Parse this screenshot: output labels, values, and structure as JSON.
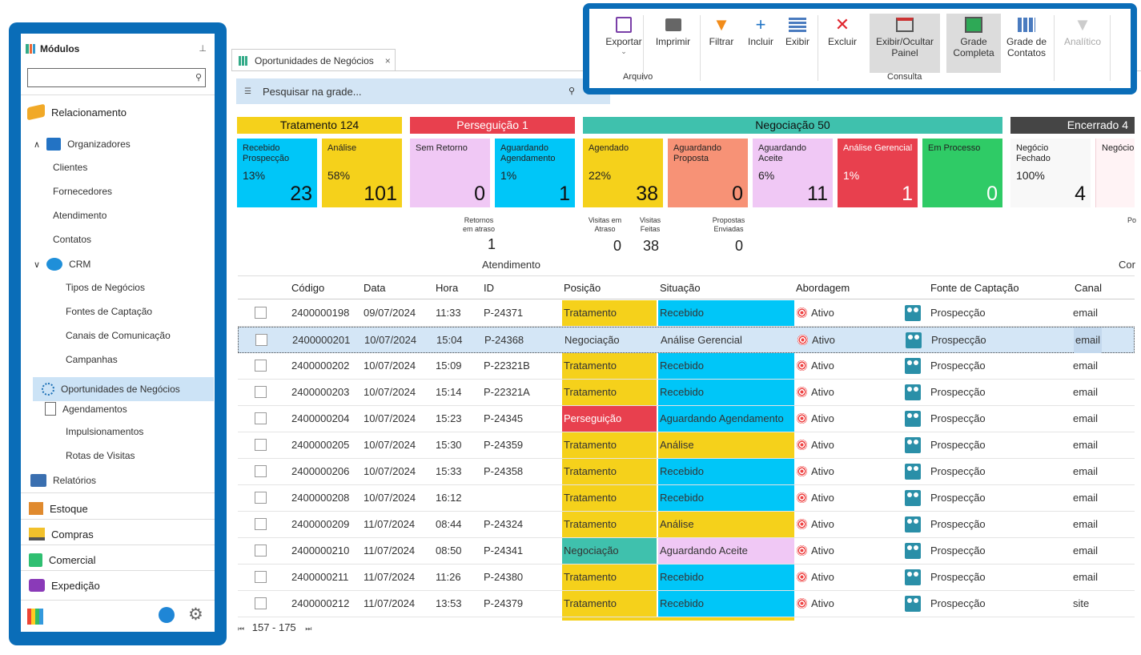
{
  "colors": {
    "accent": "#0a6db8",
    "tratamento": "#f5d11b",
    "perseguicao": "#e8404e",
    "negociacao": "#3fc1ad",
    "encerrado": "#454545",
    "cyan": "#00c6f8",
    "pink": "#f0c8f5",
    "salmon": "#f79276",
    "green": "#2fcb66"
  },
  "sidebar": {
    "title": "Módulos",
    "items": {
      "relacionamento": "Relacionamento",
      "organizadores": "Organizadores",
      "clientes": "Clientes",
      "fornecedores": "Fornecedores",
      "atendimento": "Atendimento",
      "contatos": "Contatos",
      "crm": "CRM",
      "tipos": "Tipos de Negócios",
      "fontes": "Fontes de Captação",
      "canais": "Canais de Comunicação",
      "campanhas": "Campanhas",
      "oportunidades": "Oportunidades de Negócios",
      "agendamentos": "Agendamentos",
      "impulsionamentos": "Impulsionamentos",
      "rotas": "Rotas de Visitas",
      "relatorios": "Relatórios",
      "estoque": "Estoque",
      "compras": "Compras",
      "comercial": "Comercial",
      "expedicao": "Expedição"
    }
  },
  "tab": {
    "label": "Oportunidades de Negócios",
    "close": "×"
  },
  "search": {
    "placeholder": "Pesquisar na grade..."
  },
  "ribbon": {
    "exportar": "Exportar",
    "imprimir": "Imprimir",
    "filtrar": "Filtrar",
    "incluir": "Incluir",
    "exibir": "Exibir",
    "excluir": "Excluir",
    "exibir_painel_1": "Exibir/Ocultar",
    "exibir_painel_2": "Painel",
    "grade_completa_1": "Grade",
    "grade_completa_2": "Completa",
    "grade_contatos_1": "Grade de",
    "grade_contatos_2": "Contatos",
    "analitico": "Analítico",
    "group_arquivo": "Arquivo",
    "group_consulta": "Consulta"
  },
  "kanban": {
    "headers": {
      "tratamento": "Tratamento 124",
      "perseguicao": "Perseguição 1",
      "negociacao": "Negociação 50",
      "encerrado": "Encerrado 4"
    },
    "cards": {
      "c1": {
        "l1": "Recebido",
        "l2": "Prospecção",
        "pct": "13%",
        "num": "23"
      },
      "c2": {
        "l1": "Análise",
        "l2": "",
        "pct": "58%",
        "num": "101"
      },
      "c3": {
        "l1": "Sem Retorno",
        "l2": "",
        "pct": "",
        "num": "0"
      },
      "c4": {
        "l1": "Aguardando",
        "l2": "Agendamento",
        "pct": "1%",
        "num": "1"
      },
      "c5": {
        "l1": "Agendado",
        "l2": "",
        "pct": "22%",
        "num": "38"
      },
      "c6": {
        "l1": "Aguardando",
        "l2": "Proposta",
        "pct": "",
        "num": "0"
      },
      "c7": {
        "l1": "Aguardando",
        "l2": "Aceite",
        "pct": "6%",
        "num": "11"
      },
      "c8": {
        "l1": "Análise Gerencial",
        "l2": "",
        "pct": "1%",
        "num": "1"
      },
      "c9": {
        "l1": "Em Processo",
        "l2": "",
        "pct": "",
        "num": "0"
      },
      "c10": {
        "l1": "Negócio",
        "l2": "Fechado",
        "pct": "100%",
        "num": "4"
      },
      "c11": {
        "l1": "Negócio",
        "l2": "",
        "pct": "",
        "num": ""
      }
    },
    "stats": {
      "retornos_1": "Retornos",
      "retornos_2": "em atraso",
      "retornos_v": "1",
      "visitas_atraso_1": "Visitas em",
      "visitas_atraso_2": "Atraso",
      "visitas_atraso_v": "0",
      "visitas_feitas_1": "Visitas",
      "visitas_feitas_2": "Feitas",
      "visitas_feitas_v": "38",
      "propostas_1": "Propostas",
      "propostas_2": "Enviadas",
      "propostas_v": "0",
      "po": "Po",
      "atendimento": "Atendimento",
      "cor": "Cor"
    }
  },
  "grid": {
    "columns": {
      "codigo": "Código",
      "data": "Data",
      "hora": "Hora",
      "id": "ID",
      "posicao": "Posição",
      "situacao": "Situação",
      "abordagem": "Abordagem",
      "fonte": "Fonte de Captação",
      "canal": "Canal"
    },
    "rows": [
      {
        "codigo": "2400000198",
        "data": "09/07/2024",
        "hora": "11:33",
        "id": "P-24371",
        "posicao": "Tratamento",
        "situacao": "Recebido",
        "abordagem": "Ativo",
        "fonte": "Prospecção",
        "canal": "email"
      },
      {
        "codigo": "2400000201",
        "data": "10/07/2024",
        "hora": "15:04",
        "id": "P-24368",
        "posicao": "Negociação",
        "situacao": "Análise Gerencial",
        "abordagem": "Ativo",
        "fonte": "Prospecção",
        "canal": "email"
      },
      {
        "codigo": "2400000202",
        "data": "10/07/2024",
        "hora": "15:09",
        "id": "P-22321B",
        "posicao": "Tratamento",
        "situacao": "Recebido",
        "abordagem": "Ativo",
        "fonte": "Prospecção",
        "canal": "email"
      },
      {
        "codigo": "2400000203",
        "data": "10/07/2024",
        "hora": "15:14",
        "id": "P-22321A",
        "posicao": "Tratamento",
        "situacao": "Recebido",
        "abordagem": "Ativo",
        "fonte": "Prospecção",
        "canal": "email"
      },
      {
        "codigo": "2400000204",
        "data": "10/07/2024",
        "hora": "15:23",
        "id": "P-24345",
        "posicao": "Perseguição",
        "situacao": "Aguardando Agendamento",
        "abordagem": "Ativo",
        "fonte": "Prospecção",
        "canal": "email"
      },
      {
        "codigo": "2400000205",
        "data": "10/07/2024",
        "hora": "15:30",
        "id": "P-24359",
        "posicao": "Tratamento",
        "situacao": "Análise",
        "abordagem": "Ativo",
        "fonte": "Prospecção",
        "canal": "email"
      },
      {
        "codigo": "2400000206",
        "data": "10/07/2024",
        "hora": "15:33",
        "id": "P-24358",
        "posicao": "Tratamento",
        "situacao": "Recebido",
        "abordagem": "Ativo",
        "fonte": "Prospecção",
        "canal": "email"
      },
      {
        "codigo": "2400000208",
        "data": "10/07/2024",
        "hora": "16:12",
        "id": "",
        "posicao": "Tratamento",
        "situacao": "Recebido",
        "abordagem": "Ativo",
        "fonte": "Prospecção",
        "canal": "email"
      },
      {
        "codigo": "2400000209",
        "data": "11/07/2024",
        "hora": "08:44",
        "id": "P-24324",
        "posicao": "Tratamento",
        "situacao": "Análise",
        "abordagem": "Ativo",
        "fonte": "Prospecção",
        "canal": "email"
      },
      {
        "codigo": "2400000210",
        "data": "11/07/2024",
        "hora": "08:50",
        "id": "P-24341",
        "posicao": "Negociação",
        "situacao": "Aguardando Aceite",
        "abordagem": "Ativo",
        "fonte": "Prospecção",
        "canal": "email"
      },
      {
        "codigo": "2400000211",
        "data": "11/07/2024",
        "hora": "11:26",
        "id": "P-24380",
        "posicao": "Tratamento",
        "situacao": "Recebido",
        "abordagem": "Ativo",
        "fonte": "Prospecção",
        "canal": "email"
      },
      {
        "codigo": "2400000212",
        "data": "11/07/2024",
        "hora": "13:53",
        "id": "P-24379",
        "posicao": "Tratamento",
        "situacao": "Recebido",
        "abordagem": "Ativo",
        "fonte": "Prospecção",
        "canal": "site"
      }
    ]
  },
  "pager": {
    "range": "157 - 175"
  }
}
